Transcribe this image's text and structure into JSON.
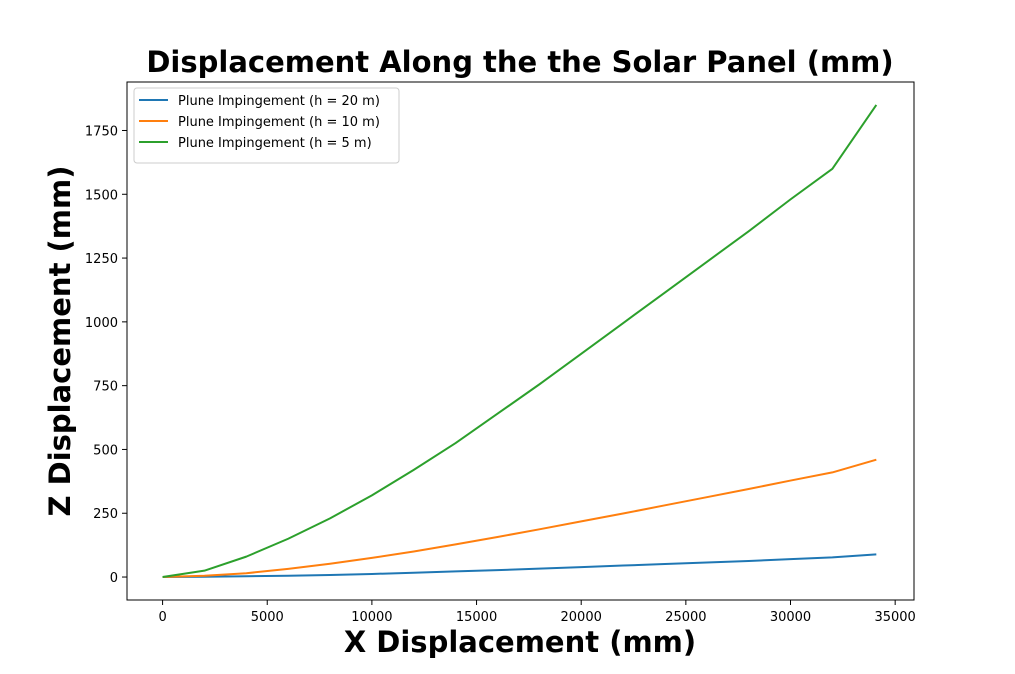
{
  "chart_data": {
    "type": "line",
    "title": "Displacement Along the the Solar Panel (mm)",
    "xlabel": "X Displacement (mm)",
    "ylabel": "Z Displacement (mm)",
    "xlim": [
      -1700,
      35900
    ],
    "ylim": [
      -90,
      1940
    ],
    "xticks": [
      0,
      5000,
      10000,
      15000,
      20000,
      25000,
      30000,
      35000
    ],
    "yticks": [
      0,
      250,
      500,
      750,
      1000,
      1250,
      1500,
      1750
    ],
    "grid": false,
    "legend_position": "upper-left",
    "x": [
      0,
      2000,
      4000,
      6000,
      8000,
      10000,
      12000,
      14000,
      16000,
      18000,
      20000,
      22000,
      24000,
      26000,
      28000,
      30000,
      32000,
      34100
    ],
    "series": [
      {
        "name": "Plune Impingement (h = 20 m)",
        "color": "#1f77b4",
        "values": [
          0,
          1,
          3,
          5,
          8,
          12,
          17,
          22,
          27,
          33,
          39,
          45,
          51,
          57,
          63,
          70,
          77,
          89
        ]
      },
      {
        "name": "Plune Impingement (h = 10 m)",
        "color": "#ff7f0e",
        "values": [
          0,
          5,
          15,
          32,
          52,
          75,
          100,
          128,
          157,
          187,
          218,
          249,
          281,
          313,
          345,
          378,
          410,
          460
        ]
      },
      {
        "name": "Plune Impingement (h = 5 m)",
        "color": "#2ca02c",
        "values": [
          0,
          25,
          80,
          150,
          230,
          320,
          420,
          525,
          640,
          755,
          875,
          995,
          1115,
          1235,
          1355,
          1480,
          1600,
          1850
        ]
      }
    ]
  }
}
